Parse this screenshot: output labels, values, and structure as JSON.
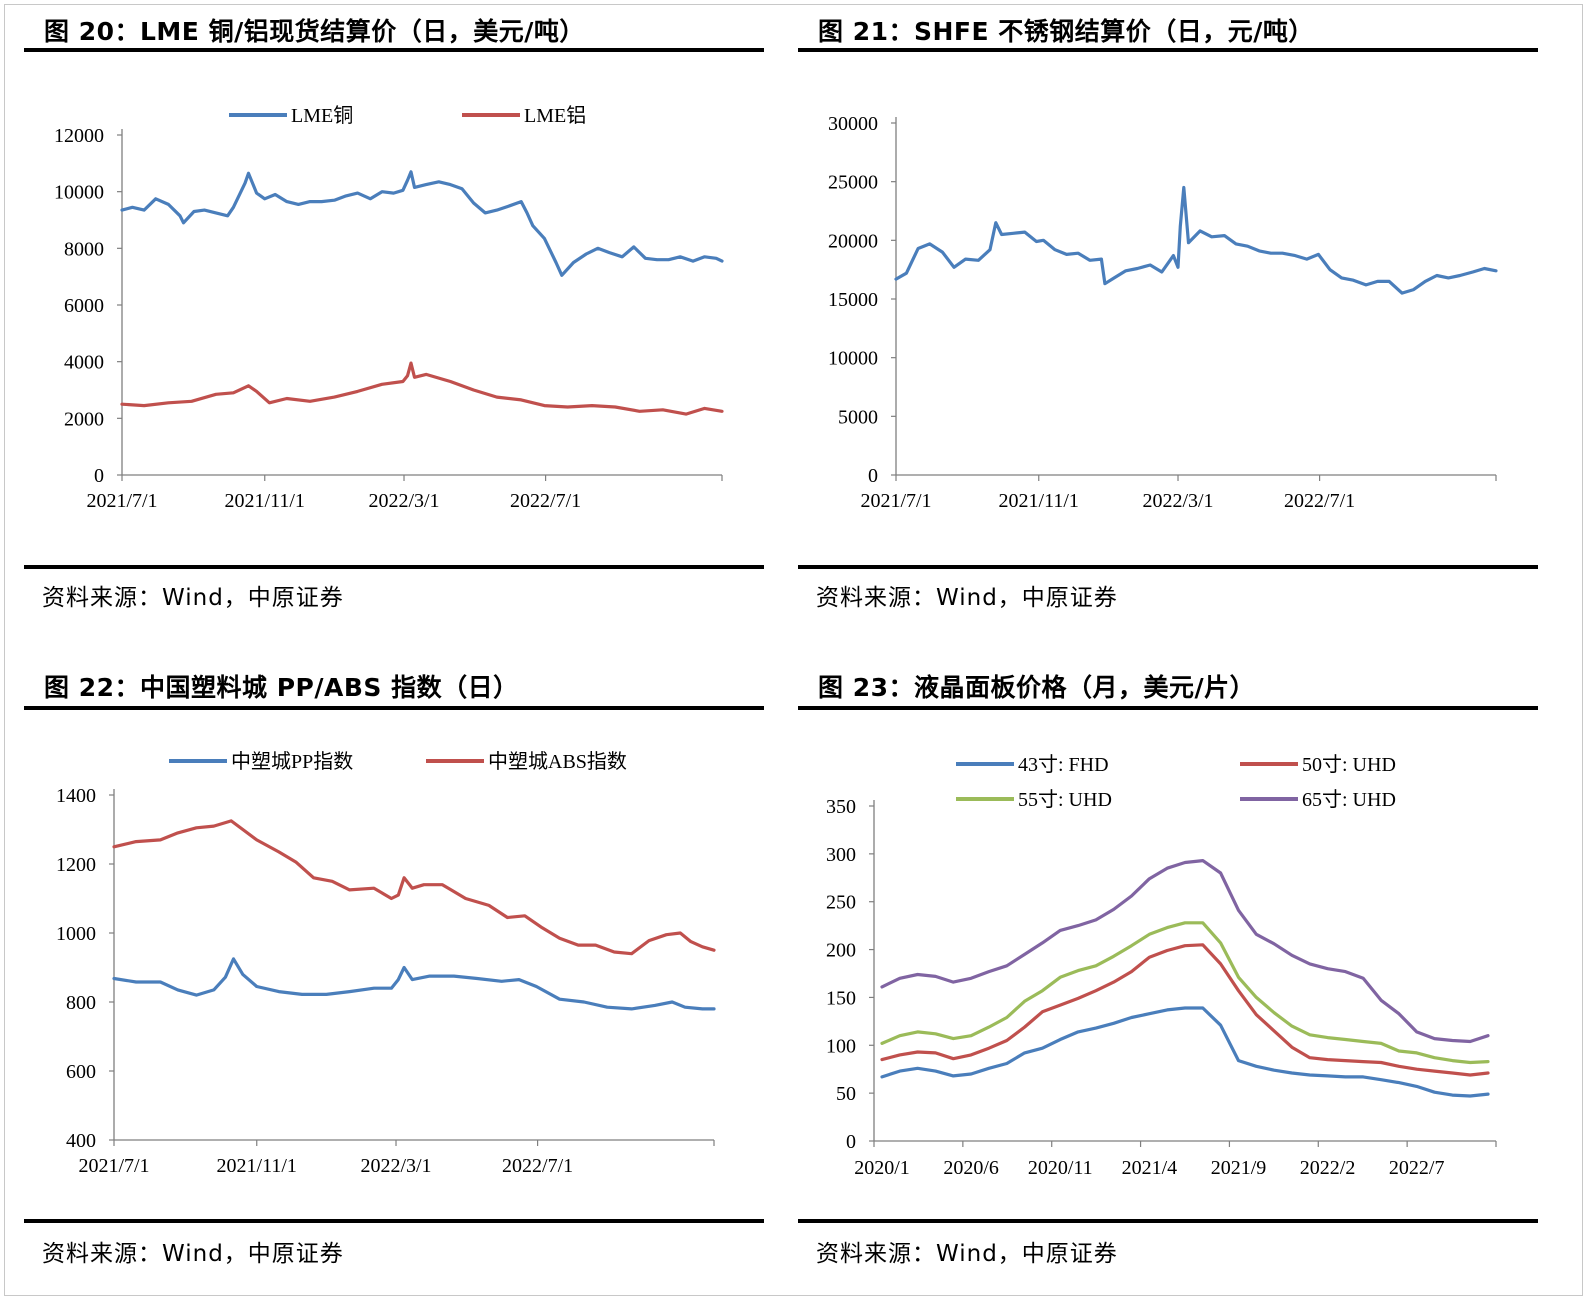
{
  "source_text": "资料来源：Wind，中原证券",
  "charts": [
    {
      "title": "图 20：LME 铜/铝现货结算价（日，美元/吨）",
      "source": "资料来源：Wind，中原证券"
    },
    {
      "title": "图 21：SHFE 不锈钢结算价（日，元/吨）",
      "source": "资料来源：Wind，中原证券"
    },
    {
      "title": "图 22：中国塑料城 PP/ABS 指数（日）",
      "source": "资料来源：Wind，中原证券"
    },
    {
      "title": "图 23：液晶面板价格（月，美元/片）",
      "source": "资料来源：Wind，中原证券"
    }
  ],
  "chart_data": [
    {
      "type": "line",
      "title": "图 20：LME 铜/铝现货结算价（日，美元/吨）",
      "ylim": [
        0,
        12000
      ],
      "yticks": [
        "0",
        "2000",
        "4000",
        "6000",
        "8000",
        "10000",
        "12000"
      ],
      "yticks_values": [
        0,
        2000,
        4000,
        6000,
        8000,
        10000,
        12000
      ],
      "xlim": [
        "2021-07-01",
        "2022-11-30"
      ],
      "xticks": [
        "2021/7/1",
        "2021/11/1",
        "2022/3/1",
        "2022/7/1"
      ],
      "xticks_dates": [
        "2021-07-01",
        "2021-11-01",
        "2022-03-01",
        "2022-07-01"
      ],
      "legend": "top",
      "series": [
        {
          "name": "LME铜",
          "color": "#4A7EBB",
          "x": [
            "2021-07-01",
            "2021-07-10",
            "2021-07-20",
            "2021-07-30",
            "2021-08-10",
            "2021-08-20",
            "2021-08-23",
            "2021-09-01",
            "2021-09-10",
            "2021-09-20",
            "2021-09-30",
            "2021-10-05",
            "2021-10-15",
            "2021-10-18",
            "2021-10-25",
            "2021-11-01",
            "2021-11-10",
            "2021-11-20",
            "2021-11-30",
            "2021-12-10",
            "2021-12-20",
            "2021-12-31",
            "2022-01-10",
            "2022-01-20",
            "2022-01-31",
            "2022-02-10",
            "2022-02-20",
            "2022-02-28",
            "2022-03-04",
            "2022-03-07",
            "2022-03-10",
            "2022-03-20",
            "2022-03-31",
            "2022-04-10",
            "2022-04-20",
            "2022-04-30",
            "2022-05-10",
            "2022-05-20",
            "2022-05-31",
            "2022-06-10",
            "2022-06-15",
            "2022-06-20",
            "2022-06-30",
            "2022-07-10",
            "2022-07-15",
            "2022-07-25",
            "2022-08-05",
            "2022-08-15",
            "2022-08-25",
            "2022-09-05",
            "2022-09-15",
            "2022-09-25",
            "2022-10-05",
            "2022-10-15",
            "2022-10-25",
            "2022-11-05",
            "2022-11-15",
            "2022-11-25",
            "2022-11-30"
          ],
          "y": [
            9350,
            9450,
            9350,
            9750,
            9550,
            9150,
            8900,
            9300,
            9350,
            9250,
            9150,
            9450,
            10300,
            10650,
            9950,
            9750,
            9900,
            9650,
            9550,
            9650,
            9650,
            9700,
            9850,
            9950,
            9750,
            10000,
            9950,
            10050,
            10400,
            10700,
            10150,
            10250,
            10350,
            10250,
            10100,
            9600,
            9250,
            9350,
            9500,
            9650,
            9250,
            8800,
            8350,
            7500,
            7050,
            7500,
            7800,
            8000,
            7850,
            7700,
            8050,
            7650,
            7600,
            7600,
            7700,
            7550,
            7700,
            7650,
            7550
          ]
        },
        {
          "name": "LME铝",
          "color": "#C0504D",
          "x": [
            "2021-07-01",
            "2021-07-20",
            "2021-08-10",
            "2021-08-30",
            "2021-09-20",
            "2021-10-05",
            "2021-10-18",
            "2021-10-25",
            "2021-11-05",
            "2021-11-20",
            "2021-12-10",
            "2021-12-31",
            "2022-01-20",
            "2022-02-10",
            "2022-02-28",
            "2022-03-04",
            "2022-03-07",
            "2022-03-10",
            "2022-03-20",
            "2022-04-10",
            "2022-04-30",
            "2022-05-20",
            "2022-06-10",
            "2022-06-30",
            "2022-07-20",
            "2022-08-10",
            "2022-08-30",
            "2022-09-20",
            "2022-10-10",
            "2022-10-30",
            "2022-11-15",
            "2022-11-30"
          ],
          "y": [
            2500,
            2450,
            2550,
            2600,
            2850,
            2900,
            3150,
            2950,
            2550,
            2700,
            2600,
            2750,
            2950,
            3200,
            3300,
            3500,
            3950,
            3450,
            3550,
            3300,
            3000,
            2750,
            2650,
            2450,
            2400,
            2450,
            2400,
            2250,
            2300,
            2150,
            2350,
            2250
          ]
        }
      ]
    },
    {
      "type": "line",
      "title": "图 21：SHFE 不锈钢结算价（日，元/吨）",
      "ylim": [
        0,
        30000
      ],
      "yticks": [
        "0",
        "5000",
        "10000",
        "15000",
        "20000",
        "25000",
        "30000"
      ],
      "yticks_values": [
        0,
        5000,
        10000,
        15000,
        20000,
        25000,
        30000
      ],
      "xlim": [
        "2021-07-01",
        "2022-11-30"
      ],
      "xticks": [
        "2021/7/1",
        "2021/11/1",
        "2022/3/1",
        "2022/7/1"
      ],
      "xticks_dates": [
        "2021-07-01",
        "2021-11-01",
        "2022-03-01",
        "2022-07-01"
      ],
      "series": [
        {
          "name": "",
          "color": "#4A7EBB",
          "x": [
            "2021-07-01",
            "2021-07-10",
            "2021-07-20",
            "2021-07-30",
            "2021-08-10",
            "2021-08-20",
            "2021-08-30",
            "2021-09-10",
            "2021-09-20",
            "2021-09-25",
            "2021-09-30",
            "2021-10-10",
            "2021-10-20",
            "2021-10-30",
            "2021-11-05",
            "2021-11-15",
            "2021-11-25",
            "2021-12-05",
            "2021-12-15",
            "2021-12-25",
            "2021-12-28",
            "2022-01-05",
            "2022-01-15",
            "2022-01-25",
            "2022-02-05",
            "2022-02-15",
            "2022-02-25",
            "2022-03-01",
            "2022-03-03",
            "2022-03-06",
            "2022-03-10",
            "2022-03-20",
            "2022-03-30",
            "2022-04-10",
            "2022-04-20",
            "2022-04-30",
            "2022-05-10",
            "2022-05-20",
            "2022-05-30",
            "2022-06-10",
            "2022-06-20",
            "2022-06-30",
            "2022-07-10",
            "2022-07-20",
            "2022-07-30",
            "2022-08-10",
            "2022-08-20",
            "2022-08-30",
            "2022-09-10",
            "2022-09-20",
            "2022-09-30",
            "2022-10-10",
            "2022-10-20",
            "2022-10-30",
            "2022-11-10",
            "2022-11-20",
            "2022-11-30"
          ],
          "y": [
            16700,
            17200,
            19300,
            19700,
            19000,
            17700,
            18400,
            18300,
            19200,
            21500,
            20500,
            20600,
            20700,
            19900,
            20000,
            19200,
            18800,
            18900,
            18300,
            18400,
            16300,
            16800,
            17400,
            17600,
            17900,
            17300,
            18700,
            17700,
            21200,
            24500,
            19800,
            20800,
            20300,
            20400,
            19700,
            19500,
            19100,
            18900,
            18900,
            18700,
            18400,
            18800,
            17500,
            16800,
            16600,
            16200,
            16500,
            16500,
            15500,
            15800,
            16500,
            17000,
            16800,
            17000,
            17300,
            17600,
            17400
          ]
        }
      ]
    },
    {
      "type": "line",
      "title": "图 22：中国塑料城 PP/ABS 指数（日）",
      "ylim": [
        400,
        1400
      ],
      "yticks": [
        "400",
        "600",
        "800",
        "1000",
        "1200",
        "1400"
      ],
      "yticks_values": [
        400,
        600,
        800,
        1000,
        1200,
        1400
      ],
      "xlim": [
        "2021-07-01",
        "2022-11-30"
      ],
      "xticks": [
        "2021/7/1",
        "2021/11/1",
        "2022/3/1",
        "2022/7/1"
      ],
      "xticks_dates": [
        "2021-07-01",
        "2021-11-01",
        "2022-03-01",
        "2022-07-01"
      ],
      "legend": "top",
      "series": [
        {
          "name": "中塑城PP指数",
          "color": "#4A7EBB",
          "x": [
            "2021-07-01",
            "2021-07-20",
            "2021-08-10",
            "2021-08-25",
            "2021-09-10",
            "2021-09-25",
            "2021-10-05",
            "2021-10-12",
            "2021-10-20",
            "2021-11-01",
            "2021-11-20",
            "2021-12-10",
            "2021-12-31",
            "2022-01-20",
            "2022-02-10",
            "2022-02-25",
            "2022-03-03",
            "2022-03-08",
            "2022-03-15",
            "2022-03-30",
            "2022-04-20",
            "2022-05-10",
            "2022-05-31",
            "2022-06-15",
            "2022-06-30",
            "2022-07-20",
            "2022-08-10",
            "2022-08-30",
            "2022-09-20",
            "2022-10-10",
            "2022-10-25",
            "2022-11-05",
            "2022-11-20",
            "2022-11-30"
          ],
          "y": [
            868,
            858,
            858,
            835,
            820,
            835,
            872,
            925,
            880,
            845,
            830,
            822,
            822,
            830,
            840,
            840,
            865,
            900,
            865,
            875,
            875,
            868,
            860,
            865,
            845,
            808,
            800,
            785,
            780,
            790,
            800,
            785,
            780,
            780
          ]
        },
        {
          "name": "中塑城ABS指数",
          "color": "#C0504D",
          "x": [
            "2021-07-01",
            "2021-07-20",
            "2021-08-10",
            "2021-08-25",
            "2021-09-10",
            "2021-09-25",
            "2021-10-10",
            "2021-10-20",
            "2021-11-01",
            "2021-11-20",
            "2021-12-05",
            "2021-12-20",
            "2022-01-05",
            "2022-01-20",
            "2022-02-10",
            "2022-02-25",
            "2022-03-03",
            "2022-03-08",
            "2022-03-15",
            "2022-03-25",
            "2022-04-10",
            "2022-04-30",
            "2022-05-20",
            "2022-06-05",
            "2022-06-20",
            "2022-07-05",
            "2022-07-20",
            "2022-08-05",
            "2022-08-20",
            "2022-09-05",
            "2022-09-20",
            "2022-10-05",
            "2022-10-20",
            "2022-11-01",
            "2022-11-10",
            "2022-11-20",
            "2022-11-30"
          ],
          "y": [
            1250,
            1265,
            1270,
            1290,
            1305,
            1310,
            1325,
            1300,
            1270,
            1235,
            1205,
            1160,
            1150,
            1125,
            1130,
            1100,
            1110,
            1160,
            1130,
            1140,
            1140,
            1100,
            1080,
            1045,
            1050,
            1015,
            985,
            965,
            965,
            945,
            940,
            978,
            995,
            1000,
            975,
            960,
            950
          ]
        }
      ]
    },
    {
      "type": "line",
      "title": "图 23：液晶面板价格（月，美元/片）",
      "ylim": [
        0,
        350
      ],
      "yticks": [
        "0",
        "50",
        "100",
        "150",
        "200",
        "250",
        "300",
        "350"
      ],
      "yticks_values": [
        0,
        50,
        100,
        150,
        200,
        250,
        300,
        350
      ],
      "xticks": [
        "2020/1",
        "2020/6",
        "2020/11",
        "2021/4",
        "2021/9",
        "2022/2",
        "2022/7"
      ],
      "xticks_index": [
        0,
        5,
        10,
        15,
        20,
        25,
        30
      ],
      "categories": [
        "2020/1",
        "2020/2",
        "2020/3",
        "2020/4",
        "2020/5",
        "2020/6",
        "2020/7",
        "2020/8",
        "2020/9",
        "2020/10",
        "2020/11",
        "2020/12",
        "2021/1",
        "2021/2",
        "2021/3",
        "2021/4",
        "2021/5",
        "2021/6",
        "2021/7",
        "2021/8",
        "2021/9",
        "2021/10",
        "2021/11",
        "2021/12",
        "2022/1",
        "2022/2",
        "2022/3",
        "2022/4",
        "2022/5",
        "2022/6",
        "2022/7",
        "2022/8",
        "2022/9",
        "2022/10",
        "2022/11"
      ],
      "legend": "top",
      "series": [
        {
          "name": "43寸: FHD",
          "color": "#4A7EBB",
          "values": [
            67,
            73,
            76,
            73,
            68,
            70,
            76,
            81,
            92,
            97,
            106,
            114,
            118,
            123,
            129,
            133,
            137,
            139,
            139,
            121,
            84,
            78,
            74,
            71,
            69,
            68,
            67,
            67,
            64,
            61,
            57,
            51,
            48,
            47,
            49
          ]
        },
        {
          "name": "50寸: UHD",
          "color": "#C0504D",
          "values": [
            85,
            90,
            93,
            92,
            86,
            90,
            97,
            105,
            119,
            135,
            142,
            149,
            157,
            166,
            177,
            192,
            199,
            204,
            205,
            185,
            157,
            132,
            115,
            98,
            87,
            85,
            84,
            83,
            82,
            78,
            75,
            73,
            71,
            69,
            71
          ]
        },
        {
          "name": "55寸: UHD",
          "color": "#9BBB59",
          "values": [
            102,
            110,
            114,
            112,
            107,
            110,
            119,
            129,
            146,
            157,
            171,
            178,
            183,
            193,
            204,
            216,
            223,
            228,
            228,
            207,
            171,
            150,
            134,
            120,
            111,
            108,
            106,
            104,
            102,
            94,
            92,
            87,
            84,
            82,
            83
          ]
        },
        {
          "name": "65寸: UHD",
          "color": "#8064A2",
          "values": [
            161,
            170,
            174,
            172,
            166,
            170,
            177,
            183,
            195,
            207,
            220,
            225,
            231,
            242,
            256,
            274,
            285,
            291,
            293,
            280,
            241,
            216,
            206,
            194,
            185,
            180,
            177,
            170,
            147,
            133,
            114,
            107,
            105,
            104,
            110
          ]
        }
      ]
    }
  ]
}
